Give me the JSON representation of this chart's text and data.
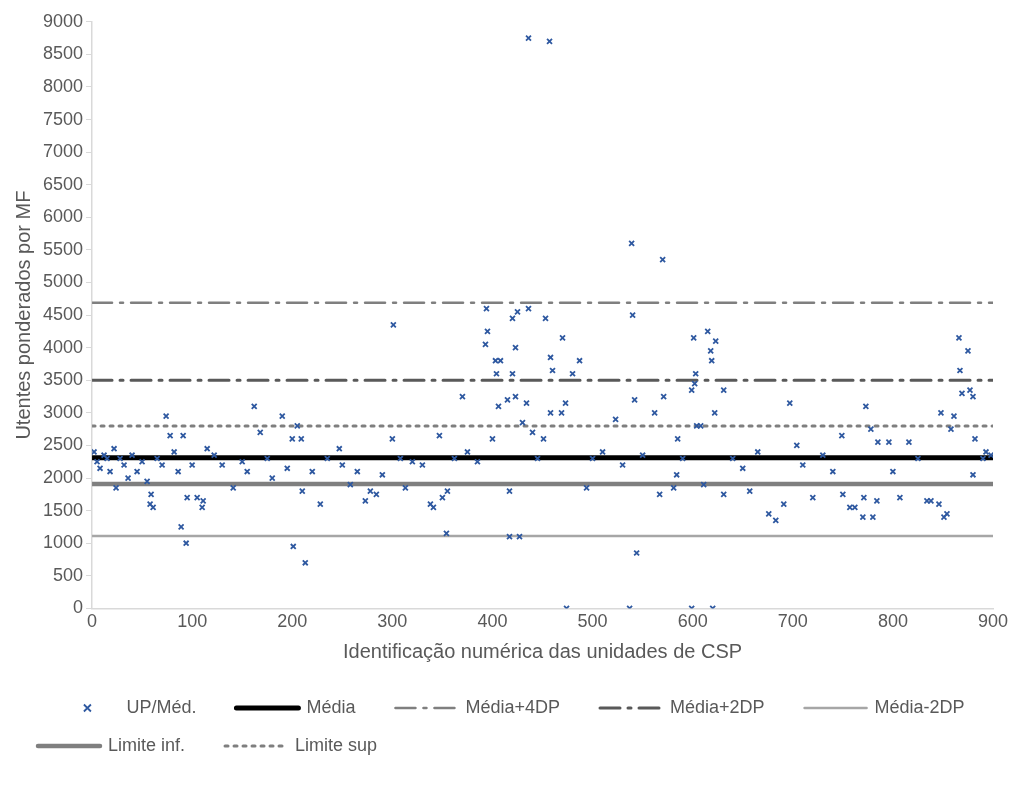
{
  "chart_data": {
    "type": "scatter",
    "xlabel": "Identificação numérica das unidades de CSP",
    "ylabel": "Utentes ponderados por MF",
    "xlim": [
      0,
      900
    ],
    "xticks": [
      0,
      100,
      200,
      300,
      400,
      500,
      600,
      700,
      800,
      900
    ],
    "ylim": [
      0,
      9000
    ],
    "yticks": [
      0,
      500,
      1000,
      1500,
      2000,
      2500,
      3000,
      3500,
      4000,
      4500,
      5000,
      5500,
      6000,
      6500,
      7000,
      7500,
      8000,
      8500,
      9000
    ],
    "grid": false,
    "legend": "bottom",
    "series": [
      {
        "name": "UP/Méd.",
        "marker": "cross",
        "color": "#2e58a0",
        "x": [
          2,
          5,
          8,
          12,
          15,
          18,
          22,
          24,
          28,
          32,
          36,
          40,
          45,
          50,
          55,
          58,
          59,
          61,
          65,
          70,
          74,
          78,
          82,
          86,
          89,
          91,
          94,
          95,
          100,
          105,
          110,
          111,
          115,
          122,
          130,
          141,
          150,
          155,
          162,
          168,
          175,
          180,
          190,
          195,
          200,
          201,
          205,
          209,
          210,
          213,
          220,
          228,
          235,
          247,
          250,
          258,
          265,
          273,
          278,
          284,
          290,
          300,
          301,
          308,
          313,
          320,
          330,
          338,
          341,
          347,
          350,
          354,
          355,
          362,
          370,
          375,
          385,
          393,
          394,
          395,
          400,
          403,
          404,
          406,
          408,
          415,
          417,
          417,
          420,
          420,
          423,
          423,
          425,
          427,
          430,
          434,
          436,
          436,
          440,
          445,
          451,
          453,
          457,
          458,
          458,
          460,
          469,
          470,
          473,
          474,
          480,
          487,
          494,
          500,
          510,
          523,
          530,
          537,
          539,
          540,
          542,
          544,
          550,
          562,
          567,
          570,
          571,
          581,
          584,
          585,
          590,
          599,
          599,
          601,
          602,
          603,
          604,
          608,
          611,
          615,
          618,
          619,
          620,
          622,
          623,
          631,
          631,
          640,
          650,
          657,
          665,
          676,
          683,
          691,
          697,
          704,
          710,
          720,
          730,
          740,
          749,
          750,
          757,
          762,
          770,
          771,
          773,
          778,
          780,
          784,
          785,
          796,
          800,
          807,
          816,
          825,
          834,
          838,
          846,
          848,
          851,
          854,
          858,
          861,
          866,
          867,
          869,
          875,
          877,
          880,
          880,
          882,
          890,
          893,
          898
        ],
        "values": [
          2400,
          2250,
          2150,
          2350,
          2300,
          2100,
          2450,
          1850,
          2300,
          2200,
          2000,
          2350,
          2100,
          2250,
          1950,
          1600,
          1750,
          1550,
          2300,
          2200,
          2950,
          2650,
          2400,
          2100,
          1250,
          2650,
          1000,
          1700,
          2200,
          1700,
          1550,
          1650,
          2450,
          2350,
          2200,
          1850,
          2250,
          2100,
          3100,
          2700,
          2300,
          2000,
          2950,
          2150,
          2600,
          950,
          2800,
          2600,
          1800,
          700,
          2100,
          1600,
          2300,
          2450,
          2200,
          1900,
          2100,
          1650,
          1800,
          1750,
          2050,
          2600,
          4350,
          2300,
          1850,
          2250,
          2200,
          1600,
          1550,
          2650,
          1700,
          1150,
          1800,
          2300,
          3250,
          2400,
          2250,
          4050,
          4600,
          4250,
          2600,
          3800,
          3600,
          3100,
          3800,
          3200,
          1800,
          1100,
          4450,
          3600,
          4000,
          3250,
          4550,
          1100,
          2850,
          3150,
          4600,
          8750,
          2700,
          2300,
          2600,
          4450,
          8700,
          3850,
          3000,
          3650,
          3000,
          4150,
          3150,
          0,
          3600,
          3800,
          1850,
          2300,
          2400,
          2900,
          2200,
          0,
          5600,
          4500,
          3200,
          850,
          2350,
          3000,
          1750,
          5350,
          3250,
          1850,
          2050,
          2600,
          2300,
          3350,
          0,
          4150,
          3450,
          3600,
          2800,
          2800,
          1900,
          4250,
          3950,
          3800,
          0,
          3000,
          4100,
          3350,
          1750,
          2300,
          2150,
          1800,
          2400,
          1450,
          1350,
          1600,
          3150,
          2500,
          2200,
          1700,
          2350,
          2100,
          2650,
          1750,
          1550,
          1550,
          1400,
          1700,
          3100,
          2750,
          1400,
          1650,
          2550,
          2550,
          2100,
          1700,
          2550,
          2300,
          1650,
          1650,
          1600,
          3000,
          1400,
          1450,
          2750,
          2950,
          4150,
          3650,
          3300,
          3950,
          3350,
          3250,
          2050,
          2600,
          2300,
          2400,
          2350
        ]
      },
      {
        "name": "Média",
        "type": "line",
        "color": "#000000",
        "line_style": "solid",
        "x": [
          0,
          900
        ],
        "values": [
          2310,
          2310
        ]
      },
      {
        "name": "Média+4DP",
        "type": "line",
        "color": "#7f7f7f",
        "line_style": "dashed",
        "x": [
          0,
          900
        ],
        "values": [
          4690,
          4690
        ]
      },
      {
        "name": "Média+2DP",
        "type": "line",
        "color": "#595959",
        "line_style": "dashed",
        "x": [
          0,
          900
        ],
        "values": [
          3500,
          3500
        ]
      },
      {
        "name": "Média-2DP",
        "type": "line",
        "color": "#a6a6a6",
        "line_style": "solid",
        "x": [
          0,
          900
        ],
        "values": [
          1110,
          1110
        ]
      },
      {
        "name": "Limite inf.",
        "type": "line",
        "color": "#7f7f7f",
        "line_style": "solid",
        "x": [
          0,
          900
        ],
        "values": [
          1910,
          1910
        ]
      },
      {
        "name": "Limite sup",
        "type": "line",
        "color": "#7f7f7f",
        "line_style": "dotted",
        "x": [
          0,
          900
        ],
        "values": [
          2800,
          2800
        ]
      }
    ]
  }
}
